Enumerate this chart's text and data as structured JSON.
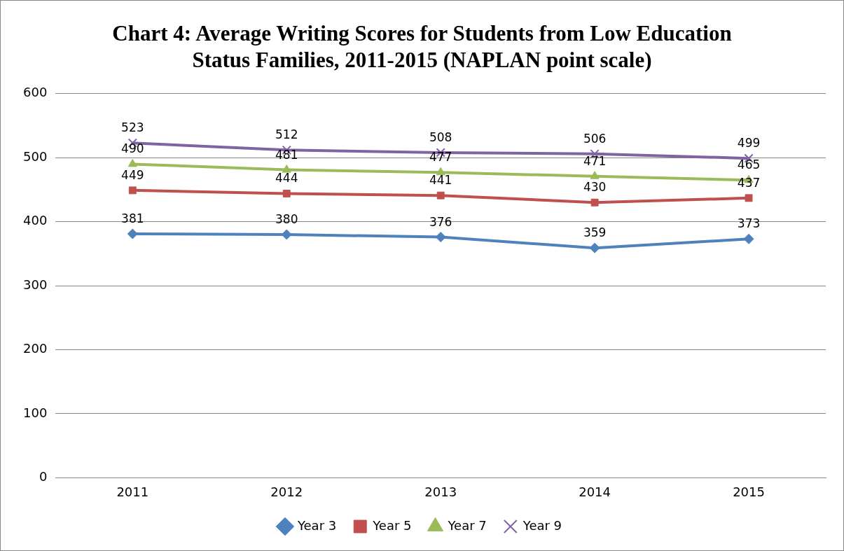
{
  "chart_data": {
    "type": "line",
    "title": "Chart 4: Average Writing Scores for Students from Low Education Status Families, 2011-2015 (NAPLAN point scale)",
    "categories": [
      "2011",
      "2012",
      "2013",
      "2014",
      "2015"
    ],
    "series": [
      {
        "name": "Year 3",
        "color": "#4f81bd",
        "marker": "diamond",
        "values": [
          381,
          380,
          376,
          359,
          373
        ]
      },
      {
        "name": "Year 5",
        "color": "#c0504d",
        "marker": "square",
        "values": [
          449,
          444,
          441,
          430,
          437
        ]
      },
      {
        "name": "Year 7",
        "color": "#9bbb59",
        "marker": "triangle",
        "values": [
          490,
          481,
          477,
          471,
          465
        ]
      },
      {
        "name": "Year 9",
        "color": "#8064a2",
        "marker": "cross",
        "values": [
          523,
          512,
          508,
          506,
          499
        ]
      }
    ],
    "ylim": [
      0,
      600
    ],
    "yticks": [
      0,
      100,
      200,
      300,
      400,
      500,
      600
    ],
    "grid": "y",
    "legend": "bottom",
    "data_labels": true,
    "line_style": "solid"
  }
}
